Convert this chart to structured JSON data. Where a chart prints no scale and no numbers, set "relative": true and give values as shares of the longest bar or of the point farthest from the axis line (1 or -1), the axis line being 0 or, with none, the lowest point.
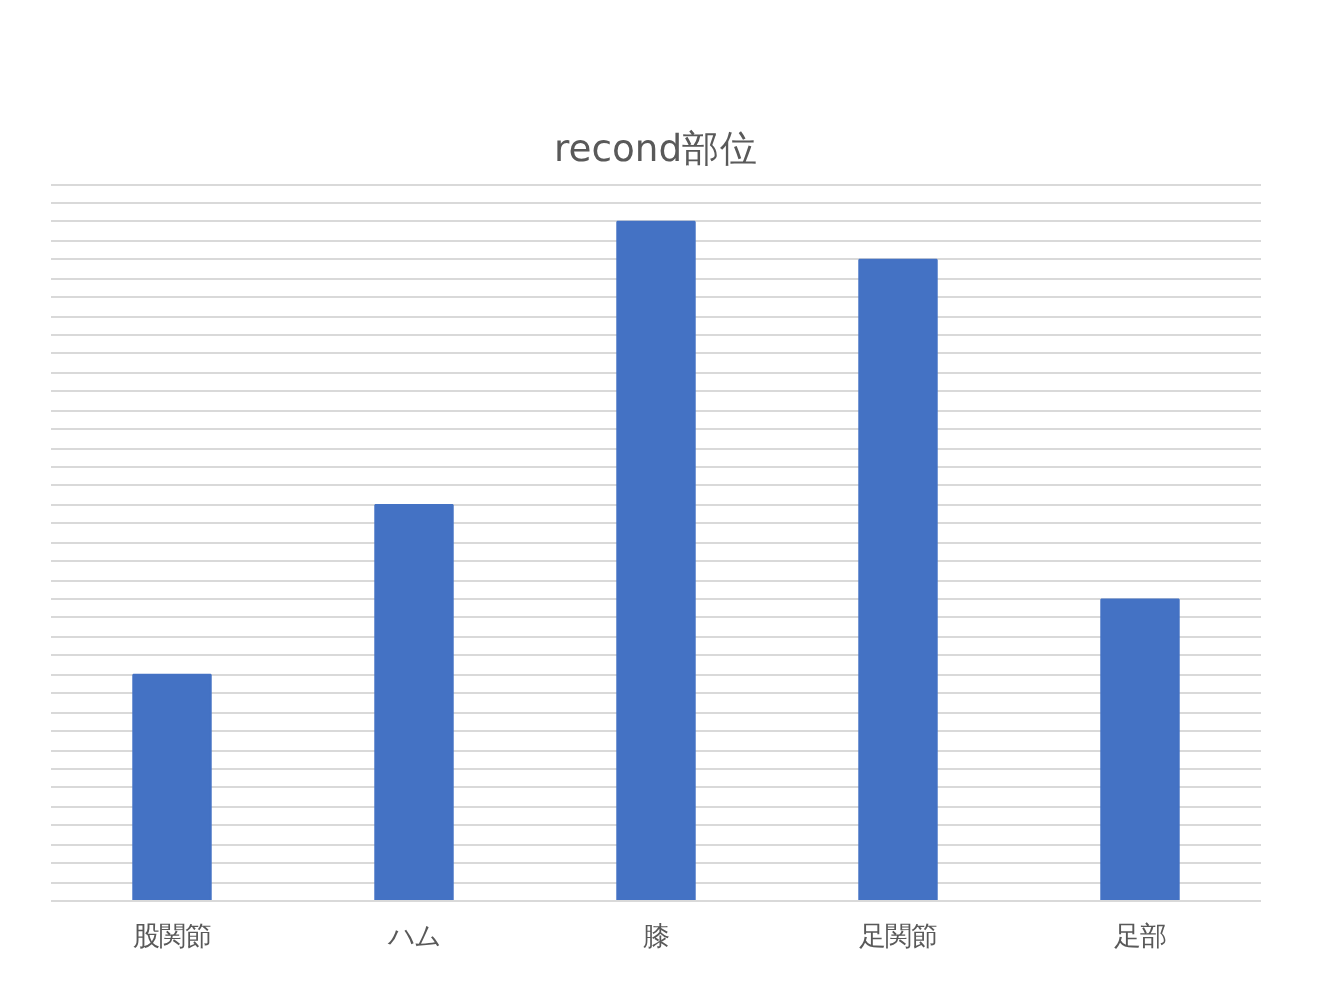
{
  "chart_data": {
    "type": "bar",
    "title": "recond部位",
    "categories": [
      "股関節",
      "ハム",
      "膝",
      "足関節",
      "足部"
    ],
    "values": [
      0.333,
      0.583,
      1,
      0.944,
      0.444
    ],
    "color": "#4472c4",
    "relative": true,
    "grid": "y"
  }
}
